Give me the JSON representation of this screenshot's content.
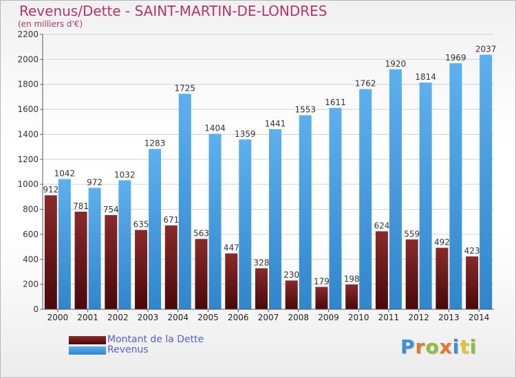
{
  "title": "Revenus/Dette - SAINT-MARTIN-DE-LONDRES",
  "subtitle": "(en milliers d'€)",
  "logo": {
    "text": "Proxiti",
    "colors": [
      "#3c8fd8",
      "#e8772e",
      "#8bbf3c",
      "#e8772e",
      "#3c8fd8",
      "#e8c22e",
      "#8bbf3c"
    ]
  },
  "colors": {
    "dette": "#6e1c1c",
    "revenus": "#3a96de",
    "title": "#b5336a",
    "legend_text": "#5b5bd6"
  },
  "chart_data": {
    "type": "bar",
    "title": "Revenus/Dette - SAINT-MARTIN-DE-LONDRES",
    "subtitle": "(en milliers d'€)",
    "categories": [
      "2000",
      "2001",
      "2002",
      "2003",
      "2004",
      "2005",
      "2006",
      "2007",
      "2008",
      "2009",
      "2010",
      "2011",
      "2012",
      "2013",
      "2014"
    ],
    "series": [
      {
        "name": "Montant de la Dette",
        "values": [
          912,
          781,
          754,
          635,
          671,
          563,
          447,
          328,
          230,
          179,
          198,
          624,
          559,
          492,
          423
        ]
      },
      {
        "name": "Revenus",
        "values": [
          1042,
          972,
          1032,
          1283,
          1725,
          1404,
          1359,
          1441,
          1553,
          1611,
          1762,
          1920,
          1814,
          1969,
          2037
        ]
      }
    ],
    "ylim": [
      0,
      2200
    ],
    "yticks": [
      0,
      200,
      400,
      600,
      800,
      1000,
      1200,
      1400,
      1600,
      1800,
      2000,
      2200
    ],
    "grid": true,
    "legend": "bottom-left"
  }
}
